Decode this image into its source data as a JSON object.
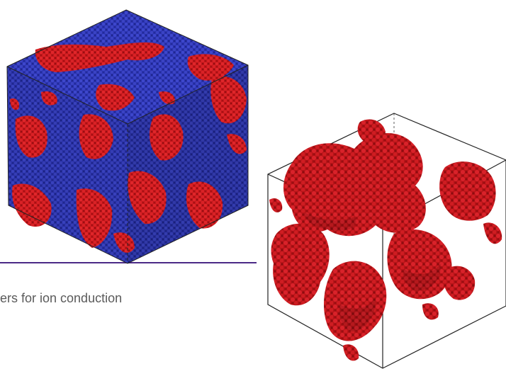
{
  "caption": "ers for ion conduction",
  "colors": {
    "blue_phase": "#2d35b5",
    "red_phase": "#d01a1e",
    "rule_line": "#4b2a86",
    "box_edge": "#222222"
  },
  "figures": [
    {
      "name": "blue-red-cube-render",
      "phases": [
        "blue",
        "red"
      ]
    },
    {
      "name": "red-network-cube-render",
      "phases": [
        "red"
      ]
    }
  ]
}
